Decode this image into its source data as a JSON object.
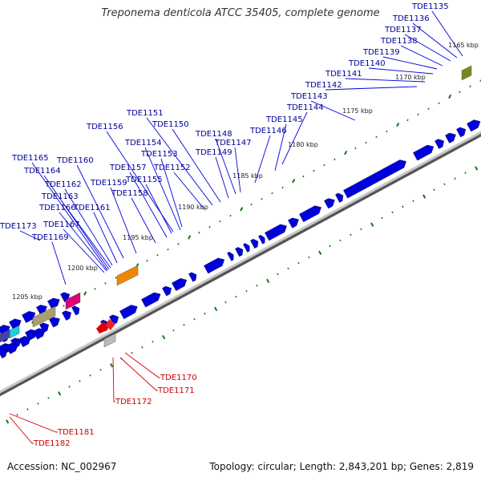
{
  "header": {
    "organism_title": "Treponema denticola ATCC 35405, complete genome"
  },
  "footer": {
    "accession": "Accession: NC_002967",
    "summary": "Topology: circular; Length: 2,843,201 bp; Genes: 2,819"
  },
  "colors": {
    "forward_gene": "#0000dd",
    "reverse_gene": "#dd0000",
    "forward_label": "#000099",
    "reverse_label": "#cc0000",
    "backbone": "#888888",
    "tick": "#117711"
  },
  "scale_labels": [
    "1165 kbp",
    "1170 kbp",
    "1175 kbp",
    "1180 kbp",
    "1185 kbp",
    "1190 kbp",
    "1195 kbp",
    "1200 kbp",
    "1205 kbp"
  ],
  "forward_gene_labels": [
    "TDE1135",
    "TDE1136",
    "TDE1137",
    "TDE1138",
    "TDE1139",
    "TDE1140",
    "TDE1141",
    "TDE1142",
    "TDE1143",
    "TDE1144",
    "TDE1145",
    "TDE1146",
    "TDE1147",
    "TDE1148",
    "TDE1149",
    "TDE1150",
    "TDE1151",
    "TDE1152",
    "TDE1153",
    "TDE1154",
    "TDE1155",
    "TDE1156",
    "TDE1157",
    "TDE1158",
    "TDE1159",
    "TDE1160",
    "TDE1161",
    "TDE1162",
    "TDE1163",
    "TDE1164",
    "TDE1165",
    "TDE1166",
    "TDE1167",
    "TDE1169",
    "TDE1173"
  ],
  "reverse_gene_labels": [
    "TDE1170",
    "TDE1171",
    "TDE1172",
    "TDE1181",
    "TDE1182"
  ]
}
